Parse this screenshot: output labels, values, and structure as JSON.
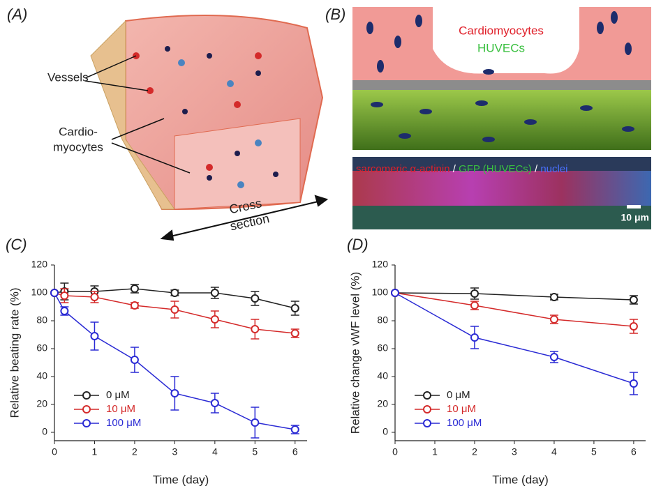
{
  "panels": {
    "a": {
      "label": "(A)",
      "vessels": "Vessels",
      "cardiomyocytes": [
        "Cardio-",
        "myocytes"
      ],
      "cross_section": [
        "Cross",
        "section"
      ]
    },
    "b": {
      "label": "(B)",
      "cardiomyocytes": "Cardiomyocytes",
      "huvecs": "HUVECs",
      "stain": [
        "sarcomeric α-actinin",
        "/",
        "GFP (HUVECs)",
        "/",
        "nuclei"
      ],
      "scale": "10 μm"
    }
  },
  "chart_data": [
    {
      "type": "line",
      "panel_label": "(C)",
      "x_label": "Time (day)",
      "y_label": "Relative beating rate (%)",
      "x": [
        0,
        0.25,
        1,
        2,
        3,
        4,
        5,
        6
      ],
      "xlim": [
        0,
        6.3
      ],
      "xticks": [
        0,
        1,
        2,
        3,
        4,
        5,
        6
      ],
      "ylim": [
        -6,
        120
      ],
      "yticks": [
        0,
        20,
        40,
        60,
        80,
        100,
        120
      ],
      "legend": "lower left",
      "series": [
        {
          "name": "0 μM",
          "color": "#222222",
          "values": [
            100,
            101,
            101,
            103,
            100,
            100,
            96,
            89
          ],
          "errors": [
            null,
            6,
            4,
            3,
            2,
            4,
            5,
            5
          ]
        },
        {
          "name": "10 μM",
          "color": "#d42a2a",
          "values": [
            100,
            98,
            97,
            91,
            88,
            81,
            74,
            71
          ],
          "errors": [
            null,
            5,
            4,
            2,
            6,
            6,
            7,
            3
          ]
        },
        {
          "name": "100 μM",
          "color": "#2a2ad4",
          "values": [
            100,
            87,
            69,
            52,
            28,
            21,
            7,
            2
          ],
          "errors": [
            null,
            3,
            10,
            9,
            12,
            7,
            11,
            3
          ]
        }
      ]
    },
    {
      "type": "line",
      "panel_label": "(D)",
      "x_label": "Time (day)",
      "y_label": "Relative change vWF level (%)",
      "x": [
        0,
        2,
        4,
        6
      ],
      "xlim": [
        0,
        6.3
      ],
      "xticks": [
        0,
        1,
        2,
        3,
        4,
        5,
        6
      ],
      "ylim": [
        -6,
        120
      ],
      "yticks": [
        0,
        20,
        40,
        60,
        80,
        100,
        120
      ],
      "legend": "lower left",
      "series": [
        {
          "name": "0 μM",
          "color": "#222222",
          "values": [
            100,
            99.5,
            97,
            95
          ],
          "errors": [
            null,
            4,
            2,
            3
          ]
        },
        {
          "name": "10 μM",
          "color": "#d42a2a",
          "values": [
            100,
            91,
            81,
            76
          ],
          "errors": [
            null,
            3,
            3,
            5
          ]
        },
        {
          "name": "100 μM",
          "color": "#2a2ad4",
          "values": [
            100,
            68,
            54,
            35
          ],
          "errors": [
            null,
            8,
            4,
            8
          ]
        }
      ]
    }
  ]
}
